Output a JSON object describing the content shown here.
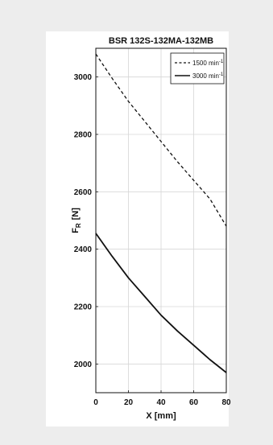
{
  "chart_data": {
    "type": "line",
    "title": "BSR 132S-132MA-132MB",
    "xlabel": "X [mm]",
    "ylabel_main": "F",
    "ylabel_sub": "R",
    "ylabel_unit": "[N]",
    "xlim": [
      0,
      80
    ],
    "ylim": [
      1900,
      3100
    ],
    "xticks": [
      "0",
      "20",
      "40",
      "60",
      "80"
    ],
    "yticks": [
      "2000",
      "2200",
      "2400",
      "2600",
      "2800",
      "3000"
    ],
    "grid": true,
    "legend_position": "top-right",
    "series": [
      {
        "name": "1500 min",
        "name_sup": "-1",
        "line_style": "dashed",
        "color": "#111111",
        "x": [
          0,
          10,
          20,
          30,
          40,
          50,
          60,
          70,
          80
        ],
        "y": [
          3080,
          2995,
          2915,
          2845,
          2775,
          2705,
          2640,
          2575,
          2480
        ]
      },
      {
        "name": "3000 min",
        "name_sup": "-1",
        "line_style": "solid",
        "color": "#111111",
        "x": [
          0,
          10,
          20,
          30,
          40,
          50,
          60,
          70,
          80
        ],
        "y": [
          2455,
          2375,
          2300,
          2235,
          2170,
          2115,
          2065,
          2015,
          1970
        ]
      }
    ]
  }
}
